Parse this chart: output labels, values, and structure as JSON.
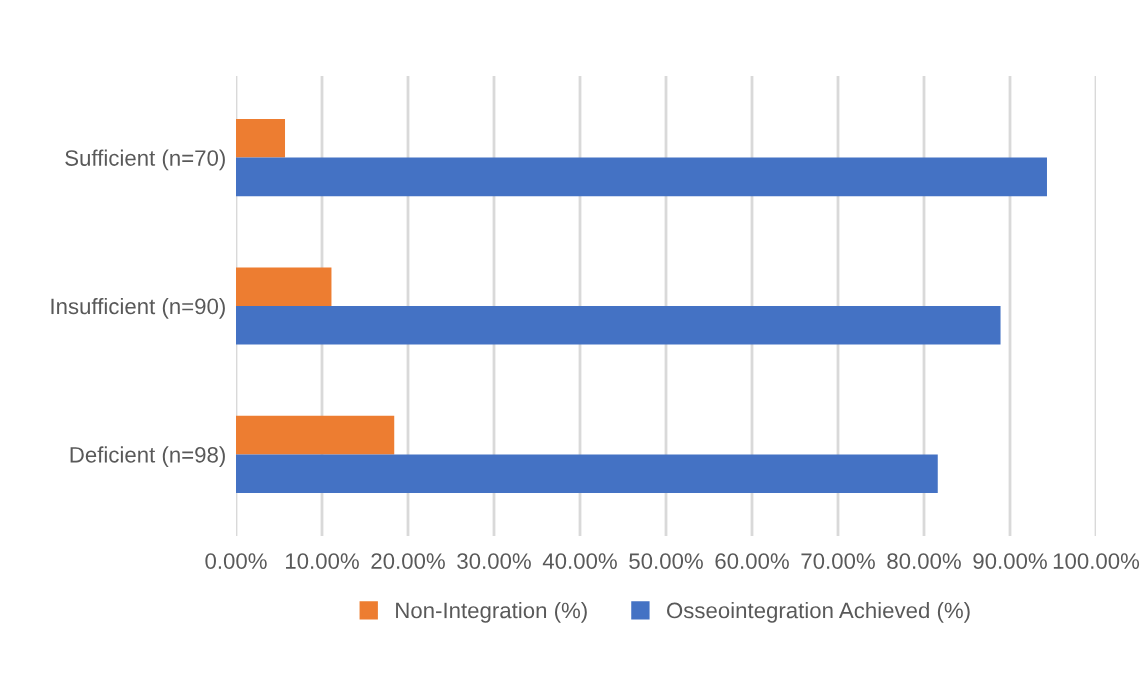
{
  "chart_data": {
    "type": "bar",
    "orientation": "horizontal",
    "categories": [
      "Sufficient (n=70)",
      "Insufficient (n=90)",
      "Deficient (n=98)"
    ],
    "series": [
      {
        "name": "Non-Integration (%)",
        "color": "#ed7d31",
        "values": [
          5.7,
          11.1,
          18.4
        ]
      },
      {
        "name": "Osseointegration Achieved (%)",
        "color": "#4472c4",
        "values": [
          94.3,
          88.9,
          81.6
        ]
      }
    ],
    "xlim": [
      0,
      100
    ],
    "xticks": [
      {
        "value": 0,
        "label": "0.00%"
      },
      {
        "value": 10,
        "label": "10.00%"
      },
      {
        "value": 20,
        "label": "20.00%"
      },
      {
        "value": 30,
        "label": "30.00%"
      },
      {
        "value": 40,
        "label": "40.00%"
      },
      {
        "value": 50,
        "label": "50.00%"
      },
      {
        "value": 60,
        "label": "60.00%"
      },
      {
        "value": 70,
        "label": "70.00%"
      },
      {
        "value": 80,
        "label": "80.00%"
      },
      {
        "value": 90,
        "label": "90.00%"
      },
      {
        "value": 100,
        "label": "100.00%"
      }
    ],
    "grid": "x",
    "legend": "bottom"
  }
}
